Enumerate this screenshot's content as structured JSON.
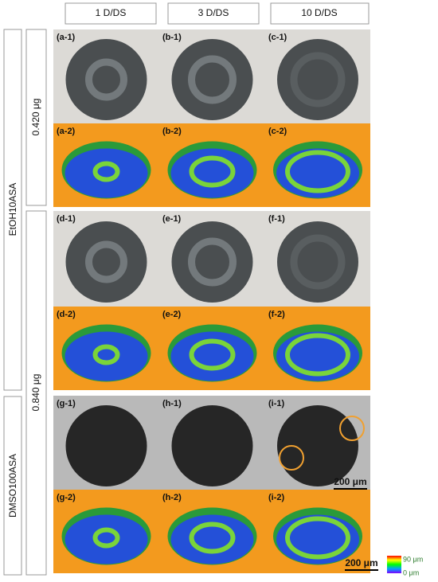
{
  "columns": [
    "1 D/DS",
    "3 D/DS",
    "10 D/DS"
  ],
  "groups": [
    "EtOH10ASA",
    "DMSO100ASA"
  ],
  "doses": [
    "0.420 μg",
    "0.840 μg"
  ],
  "panels": [
    [
      "(a-1)",
      "(b-1)",
      "(c-1)"
    ],
    [
      "(a-2)",
      "(b-2)",
      "(c-2)"
    ],
    [
      "(d-1)",
      "(e-1)",
      "(f-1)"
    ],
    [
      "(d-2)",
      "(e-2)",
      "(f-2)"
    ],
    [
      "(g-1)",
      "(h-1)",
      "(i-1)"
    ],
    [
      "(g-2)",
      "(h-2)",
      "(i-2)"
    ]
  ],
  "scale_bars": [
    "200 μm",
    "200 μm"
  ],
  "colorbar": {
    "max": "90 μm",
    "min": "0 μm"
  }
}
